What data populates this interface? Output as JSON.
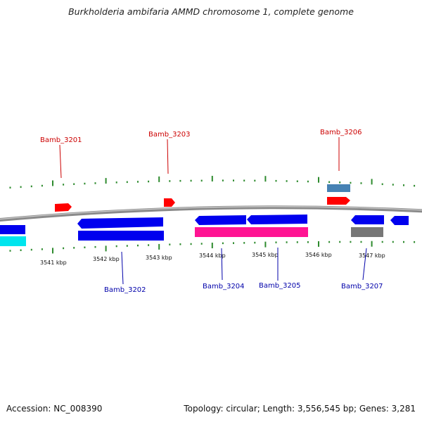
{
  "title": "Burkholderia ambifaria AMMD chromosome 1, complete genome",
  "footer": {
    "accession": "Accession: NC_008390",
    "summary": "Topology: circular; Length: 3,556,545 bp; Genes: 3,281"
  },
  "colors": {
    "backbone": "#8a8a8a",
    "tick": "#2e8b2e",
    "forward_label": "#cc0000",
    "reverse_label": "#0000aa",
    "forward_cds": "#ff0000",
    "reverse_cds": "#0000ee",
    "cyan_feature": "#00e5ee",
    "pink_feature": "#ff1493",
    "steel_feature": "#4682b4",
    "gray_feature": "#777777"
  },
  "scale": {
    "labels": [
      "3541 kbp",
      "3542 kbp",
      "3543 kbp",
      "3544 kbp",
      "3545 kbp",
      "3546 kbp",
      "3547 kbp"
    ],
    "major_positions_kbp": [
      3541,
      3542,
      3543,
      3544,
      3545,
      3546,
      3547
    ],
    "minor_step_kbp": 0.2
  },
  "gene_labels": [
    {
      "name": "Bamb_3201",
      "strand": "forward"
    },
    {
      "name": "Bamb_3202",
      "strand": "reverse"
    },
    {
      "name": "Bamb_3203",
      "strand": "forward"
    },
    {
      "name": "Bamb_3204",
      "strand": "reverse"
    },
    {
      "name": "Bamb_3205",
      "strand": "reverse"
    },
    {
      "name": "Bamb_3206",
      "strand": "forward"
    },
    {
      "name": "Bamb_3207",
      "strand": "reverse"
    }
  ]
}
